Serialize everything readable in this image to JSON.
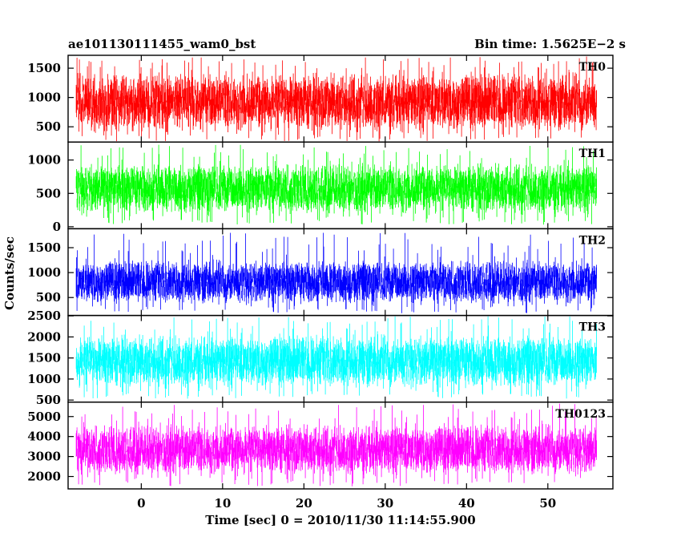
{
  "header": {
    "left_title": "ae101130111455_wam0_bst",
    "right_title": "Bin time: 1.5625E−2 s"
  },
  "chart_data": {
    "type": "line",
    "title": "ae101130111455_wam0_bst",
    "subtitle": "Bin time: 1.5625E−2 s",
    "xlabel": "Time [sec] 0 = 2010/11/30 11:14:55.900",
    "ylabel": "Counts/sec",
    "xlim": [
      -9,
      58
    ],
    "data_x_range": [
      -8,
      56
    ],
    "x_ticks": [
      0,
      10,
      20,
      30,
      40,
      50
    ],
    "x_tick_labels": [
      "0",
      "10",
      "20",
      "30",
      "40",
      "50"
    ],
    "bin_time_s": 0.015625,
    "panels": [
      {
        "name": "TH0",
        "color": "#ff0000",
        "ylim": [
          240,
          1720
        ],
        "y_ticks": [
          500,
          1000,
          1500
        ],
        "y_tick_labels": [
          "500",
          "1000",
          "1500"
        ],
        "typical_low": 430,
        "typical_high": 1420,
        "min_dip": 250,
        "max_spike": 1700
      },
      {
        "name": "TH1",
        "color": "#00ff00",
        "ylim": [
          -30,
          1270
        ],
        "y_ticks": [
          0,
          500,
          1000
        ],
        "y_tick_labels": [
          "0",
          "500",
          "1000"
        ],
        "typical_low": 200,
        "typical_high": 950,
        "min_dip": 30,
        "max_spike": 1230
      },
      {
        "name": "TH2",
        "color": "#0000ff",
        "ylim": [
          140,
          1880
        ],
        "y_ticks": [
          500,
          1000,
          1500
        ],
        "y_tick_labels": [
          "500",
          "1000",
          "1500"
        ],
        "typical_low": 380,
        "typical_high": 1250,
        "min_dip": 180,
        "max_spike": 1800
      },
      {
        "name": "TH3",
        "color": "#00ffff",
        "ylim": [
          450,
          2510
        ],
        "y_ticks": [
          500,
          1000,
          1500,
          2000,
          2500
        ],
        "y_tick_labels": [
          "500",
          "1000",
          "1500",
          "2000",
          "2500"
        ],
        "typical_low": 800,
        "typical_high": 2050,
        "min_dip": 530,
        "max_spike": 2490
      },
      {
        "name": "TH0123",
        "color": "#ff00ff",
        "ylim": [
          1380,
          5720
        ],
        "y_ticks": [
          2000,
          3000,
          4000,
          5000
        ],
        "y_tick_labels": [
          "2000",
          "3000",
          "4000",
          "5000"
        ],
        "typical_low": 2100,
        "typical_high": 4600,
        "min_dip": 1500,
        "max_spike": 5650
      }
    ]
  }
}
